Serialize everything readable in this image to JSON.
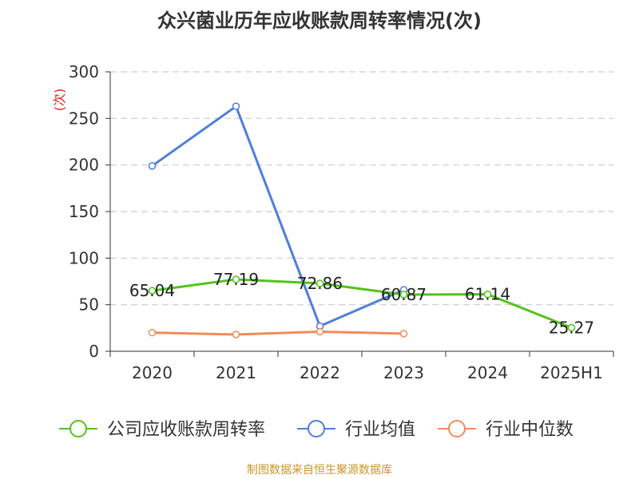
{
  "chart_data": {
    "type": "line",
    "title": "众兴菌业历年应收账款周转率情况(次)",
    "ylabel": "(次)",
    "xlabel": "",
    "categories": [
      "2020",
      "2021",
      "2022",
      "2023",
      "2024",
      "2025H1"
    ],
    "ylim": [
      0,
      300
    ],
    "yticks": [
      0,
      50,
      100,
      150,
      200,
      250,
      300
    ],
    "grid": true,
    "legend_position": "bottom",
    "series": [
      {
        "name": "公司应收账款周转率",
        "values": [
          65.04,
          77.19,
          72.86,
          60.87,
          61.14,
          25.27
        ],
        "color": "#52c41a",
        "labels": true
      },
      {
        "name": "行业均值",
        "values": [
          199,
          263,
          27,
          66,
          null,
          null
        ],
        "color": "#4e7fd9",
        "labels": false
      },
      {
        "name": "行业中位数",
        "values": [
          20,
          18,
          21,
          19,
          null,
          null
        ],
        "color": "#f08c5a",
        "labels": false
      }
    ]
  },
  "source": "制图数据来自恒生聚源数据库"
}
